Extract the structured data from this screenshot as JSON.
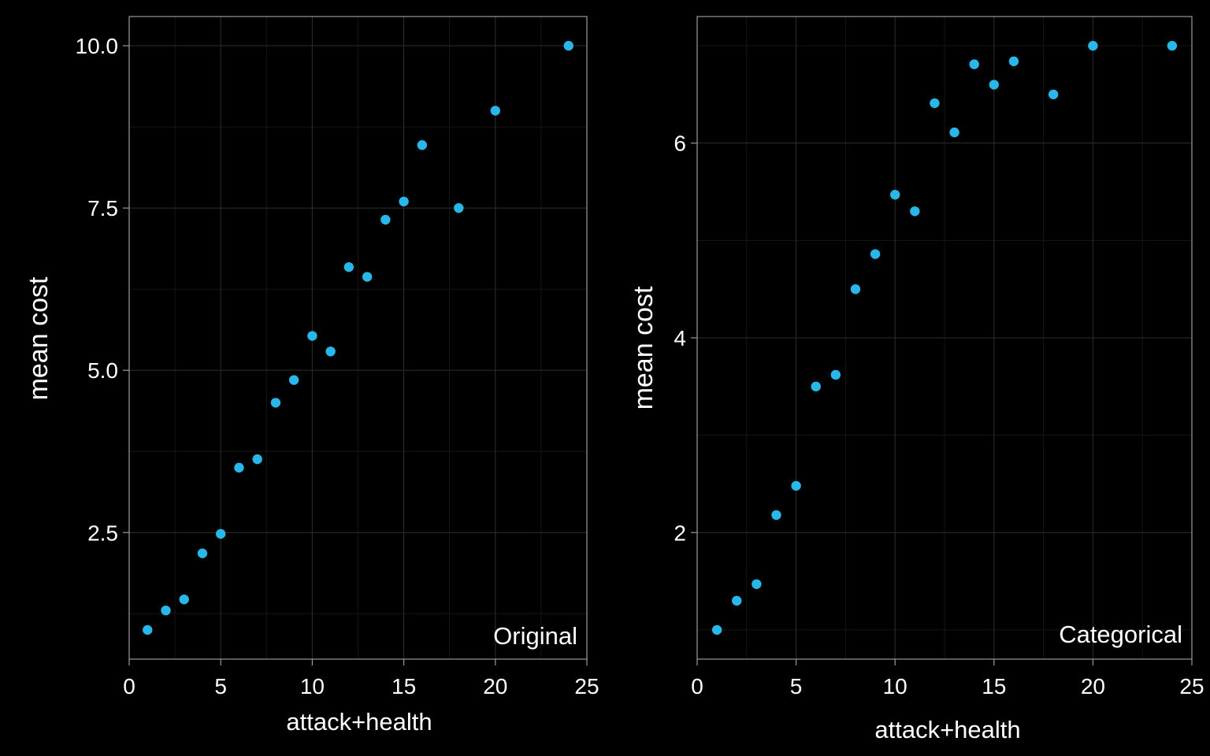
{
  "colors": {
    "background": "#000000",
    "point": "#29b6e8",
    "text": "#ffffff"
  },
  "chart_data": [
    {
      "type": "scatter",
      "annotation": "Original",
      "xlabel": "attack+health",
      "ylabel": "mean cost",
      "xlim": [
        0,
        25
      ],
      "ylim": [
        0.55,
        10.45
      ],
      "xticks": [
        0,
        5,
        10,
        15,
        20,
        25
      ],
      "xtick_labels": [
        "0",
        "5",
        "10",
        "15",
        "20",
        "25"
      ],
      "yticks": [
        2.5,
        5.0,
        7.5,
        10.0
      ],
      "ytick_labels": [
        "2.5",
        "5.0",
        "7.5",
        "10.0"
      ],
      "grid": true,
      "x": [
        1,
        2,
        3,
        4,
        5,
        6,
        7,
        8,
        9,
        10,
        11,
        12,
        13,
        14,
        15,
        16,
        18,
        20,
        24
      ],
      "y": [
        1.0,
        1.3,
        1.47,
        2.18,
        2.48,
        3.5,
        3.63,
        4.5,
        4.85,
        5.53,
        5.29,
        6.59,
        6.44,
        7.32,
        7.6,
        8.47,
        7.5,
        9.0,
        10.0
      ]
    },
    {
      "type": "scatter",
      "annotation": "Categorical",
      "xlabel": "attack+health",
      "ylabel": "mean cost",
      "xlim": [
        0,
        25
      ],
      "ylim": [
        0.7,
        7.3
      ],
      "xticks": [
        0,
        5,
        10,
        15,
        20,
        25
      ],
      "xtick_labels": [
        "0",
        "5",
        "10",
        "15",
        "20",
        "25"
      ],
      "yticks": [
        2,
        4,
        6
      ],
      "ytick_labels": [
        "2",
        "4",
        "6"
      ],
      "grid": true,
      "x": [
        1,
        2,
        3,
        4,
        5,
        6,
        7,
        8,
        9,
        10,
        11,
        12,
        13,
        14,
        15,
        16,
        18,
        20,
        24
      ],
      "y": [
        1.0,
        1.3,
        1.47,
        2.18,
        2.48,
        3.5,
        3.62,
        4.5,
        4.86,
        5.47,
        5.3,
        6.41,
        6.11,
        6.81,
        6.6,
        6.84,
        6.5,
        7.0,
        7.0
      ]
    }
  ]
}
